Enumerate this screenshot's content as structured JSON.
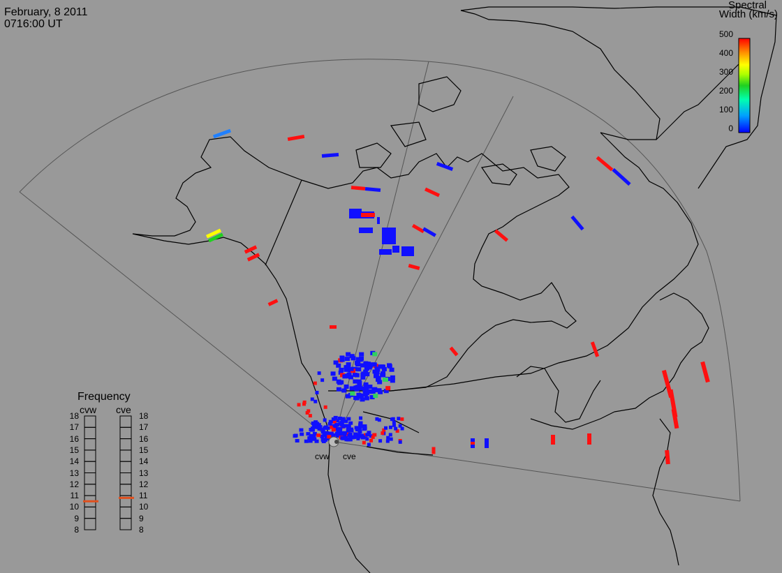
{
  "header": {
    "date": "February, 8 2011",
    "time": "0716:00 UT"
  },
  "colorbar": {
    "title_line1": "Spectral",
    "title_line2": "Width (km/s)",
    "ticks": [
      "500",
      "400",
      "300",
      "200",
      "100",
      "0"
    ],
    "colors": [
      "#0000ff",
      "#00a0ff",
      "#00ffb0",
      "#20d020",
      "#b0ff00",
      "#ffff00",
      "#ff9000",
      "#ff0000"
    ]
  },
  "frequency_panel": {
    "title": "Frequency",
    "radars": [
      "cvw",
      "cve"
    ],
    "levels": [
      "18",
      "17",
      "16",
      "15",
      "14",
      "13",
      "12",
      "11",
      "10",
      "9",
      "8"
    ],
    "cvw_mhz": 10.5,
    "cve_mhz": 10.8
  },
  "radar_sites": [
    {
      "code": "cvw"
    },
    {
      "code": "cve"
    }
  ],
  "colors": {
    "background": "#999999",
    "coastline": "#000000",
    "fov": "#555555",
    "low_width": "#1010ff",
    "high_width": "#ff1010",
    "freq_marker": "#e0501e"
  }
}
